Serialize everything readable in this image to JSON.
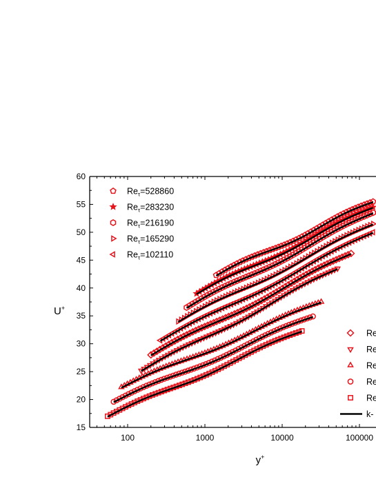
{
  "chart_data": {
    "type": "scatter",
    "title": "",
    "xlabel": "y",
    "xlabel_sup": "+",
    "ylabel": "U",
    "ylabel_sup": "+",
    "xscale": "log",
    "xlim": [
      30,
      150000
    ],
    "ylim": [
      15,
      60
    ],
    "grid": false,
    "x_ticks": [
      {
        "value": 100,
        "label": "100"
      },
      {
        "value": 1000,
        "label": "1000"
      },
      {
        "value": 10000,
        "label": "10000"
      },
      {
        "value": 100000,
        "label": "100000"
      }
    ],
    "y_ticks": [
      {
        "value": 15,
        "label": "15"
      },
      {
        "value": 20,
        "label": "20"
      },
      {
        "value": 25,
        "label": "25"
      },
      {
        "value": 30,
        "label": "30"
      },
      {
        "value": 35,
        "label": "35"
      },
      {
        "value": 40,
        "label": "40"
      },
      {
        "value": 45,
        "label": "45"
      },
      {
        "value": 50,
        "label": "50"
      },
      {
        "value": 55,
        "label": "55"
      },
      {
        "value": 60,
        "label": "60"
      }
    ],
    "marker_color": "#e8141c",
    "line_color": "#000000",
    "legend_left": [
      {
        "marker": "pentagon",
        "base": "Re",
        "sub": "τ",
        "value": "=528860"
      },
      {
        "marker": "star",
        "base": "Re",
        "sub": "τ",
        "value": "=283230"
      },
      {
        "marker": "hexagon",
        "base": "Re",
        "sub": "τ",
        "value": "=216190"
      },
      {
        "marker": "triangle-right",
        "base": "Re",
        "sub": "τ",
        "value": "=165290"
      },
      {
        "marker": "triangle-left",
        "base": "Re",
        "sub": "τ",
        "value": "=102110"
      }
    ],
    "legend_right": [
      {
        "marker": "diamond",
        "text": "Re"
      },
      {
        "marker": "triangle-down",
        "text": "Re"
      },
      {
        "marker": "triangle-up",
        "text": "Re"
      },
      {
        "marker": "circle",
        "text": "Re"
      },
      {
        "marker": "square",
        "text": "Re"
      },
      {
        "marker": "line",
        "text": "k-"
      }
    ],
    "series": [
      {
        "marker": "pentagon",
        "x_start": 1400,
        "x_end": 150000,
        "y_start": 42.3,
        "y_end": 55.5
      },
      {
        "marker": "star",
        "x_start": 780,
        "x_end": 150000,
        "y_start": 39.0,
        "y_end": 54.5
      },
      {
        "marker": "hexagon",
        "x_start": 580,
        "x_end": 150000,
        "y_start": 36.5,
        "y_end": 53.5
      },
      {
        "marker": "triangle-right",
        "x_start": 450,
        "x_end": 150000,
        "y_start": 34.0,
        "y_end": 51.5
      },
      {
        "marker": "triangle-left",
        "x_start": 265,
        "x_end": 150000,
        "y_start": 30.6,
        "y_end": 50.0
      },
      {
        "marker": "diamond",
        "x_start": 200,
        "x_end": 78000,
        "y_start": 28.0,
        "y_end": 46.2
      },
      {
        "marker": "triangle-down",
        "x_start": 150,
        "x_end": 52000,
        "y_start": 25.2,
        "y_end": 43.5
      },
      {
        "marker": "triangle-up",
        "x_start": 83,
        "x_end": 32000,
        "y_start": 22.2,
        "y_end": 37.5
      },
      {
        "marker": "circle",
        "x_start": 66,
        "x_end": 25000,
        "y_start": 19.6,
        "y_end": 34.9
      },
      {
        "marker": "square",
        "x_start": 55,
        "x_end": 18000,
        "y_start": 17.0,
        "y_end": 32.3
      }
    ]
  }
}
